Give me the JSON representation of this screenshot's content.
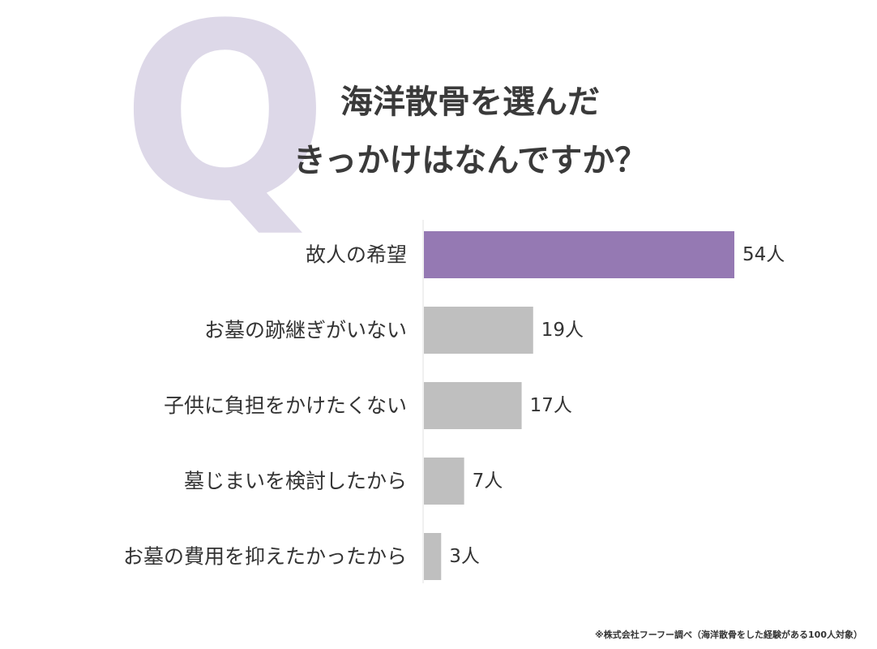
{
  "q_letter": "Q",
  "title": {
    "line1": "海洋散骨を選んだ",
    "line2": "きっかけはなんですか？"
  },
  "footnote": "※株式会社フーフー調べ（海洋散骨をした経験がある100人対象）",
  "colors": {
    "highlight_bar": "#9579b3",
    "default_bar": "#bfbfbf",
    "axis": "#e0e0e0",
    "q_letter": "#ddd8e8",
    "text": "#333333"
  },
  "chart_data": {
    "type": "bar",
    "orientation": "horizontal",
    "title": "海洋散骨を選んだきっかけはなんですか？",
    "categories": [
      "故人の希望",
      "お墓の跡継ぎがいない",
      "子供に負担をかけたくない",
      "墓じまいを検討したから",
      "お墓の費用を抑えたかったから"
    ],
    "values": [
      54,
      19,
      17,
      7,
      3
    ],
    "value_labels": [
      "54人",
      "19人",
      "17人",
      "7人",
      "3人"
    ],
    "unit": "人",
    "highlight_index": 0,
    "xlim": [
      0,
      54
    ],
    "grid": false,
    "legend": "none"
  }
}
